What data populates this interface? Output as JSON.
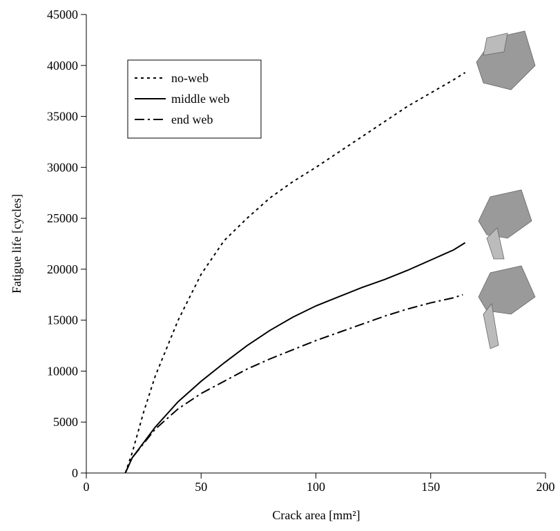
{
  "chart_data": {
    "type": "line",
    "xlabel": "Crack area [mm²]",
    "ylabel": "Fatigue life [cycles]",
    "xlim": [
      0,
      200
    ],
    "xticks": [
      0,
      50,
      100,
      150,
      200
    ],
    "ylim": [
      0,
      45000
    ],
    "yticks": [
      0,
      5000,
      10000,
      15000,
      20000,
      25000,
      30000,
      35000,
      40000,
      45000
    ],
    "legend": "upper left",
    "series": [
      {
        "name": "no-web",
        "color": "#000000",
        "dash": "dotted",
        "x": [
          17,
          20,
          25,
          30,
          40,
          50,
          60,
          70,
          80,
          90,
          100,
          110,
          120,
          130,
          140,
          150,
          160,
          165
        ],
        "values": [
          0,
          2000,
          6000,
          9500,
          15000,
          19500,
          22800,
          25000,
          27000,
          28600,
          30000,
          31500,
          33000,
          34500,
          36000,
          37300,
          38600,
          39300
        ]
      },
      {
        "name": "middle web",
        "color": "#000000",
        "dash": "solid",
        "x": [
          17,
          20,
          30,
          40,
          50,
          60,
          70,
          80,
          90,
          100,
          110,
          120,
          130,
          140,
          150,
          160,
          165
        ],
        "values": [
          0,
          1500,
          4500,
          7000,
          9000,
          10800,
          12500,
          14000,
          15300,
          16400,
          17300,
          18200,
          19000,
          19900,
          20900,
          21900,
          22600
        ]
      },
      {
        "name": "end web",
        "color": "#000000",
        "dash": "dashdot",
        "x": [
          17,
          20,
          30,
          40,
          50,
          60,
          70,
          80,
          90,
          100,
          110,
          120,
          130,
          140,
          150,
          160,
          164
        ],
        "values": [
          0,
          1500,
          4300,
          6300,
          7800,
          9000,
          10200,
          11200,
          12100,
          13000,
          13800,
          14600,
          15400,
          16100,
          16700,
          17200,
          17500
        ]
      }
    ]
  }
}
